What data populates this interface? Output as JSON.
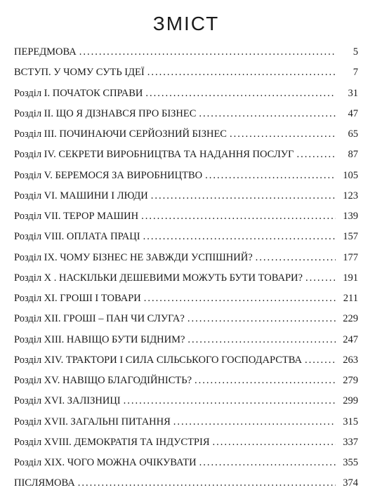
{
  "title": "ЗМІСТ",
  "colors": {
    "background": "#ffffff",
    "text": "#1a1a1a"
  },
  "typography": {
    "title_fontsize": 28,
    "entry_fontsize": 14.5,
    "title_letterspacing": 2
  },
  "entries": [
    {
      "label": "ПЕРЕДМОВА",
      "page": "5"
    },
    {
      "label": "ВСТУП. У ЧОМУ СУТЬ ІДЕЇ",
      "page": "7"
    },
    {
      "label": "Розділ І. ПОЧАТОК СПРАВИ",
      "page": "31"
    },
    {
      "label": "Розділ ІІ. ЩО Я ДІЗНАВСЯ ПРО БІЗНЕС",
      "page": "47"
    },
    {
      "label": "Розділ ІІІ. ПОЧИНАЮЧИ СЕРЙОЗНИЙ БІЗНЕС",
      "page": "65"
    },
    {
      "label": "Розділ IV. СЕКРЕТИ ВИРОБНИЦТВА ТА НАДАННЯ ПОСЛУГ",
      "page": "87"
    },
    {
      "label": "Розділ V. БЕРЕМОСЯ ЗА ВИРОБНИЦТВО",
      "page": "105"
    },
    {
      "label": "Розділ VI. МАШИНИ І ЛЮДИ",
      "page": "123"
    },
    {
      "label": "Розділ VII. ТЕРОР МАШИН",
      "page": "139"
    },
    {
      "label": "Розділ VIII. ОПЛАТА ПРАЦІ",
      "page": "157"
    },
    {
      "label": "Розділ IX. ЧОМУ БІЗНЕС НЕ ЗАВЖДИ УСПІШНИЙ?",
      "page": "177"
    },
    {
      "label": "Розділ X . НАСКІЛЬКИ ДЕШЕВИМИ МОЖУТЬ БУТИ ТОВАРИ?",
      "page": "191"
    },
    {
      "label": "Розділ XI. ГРОШІ І ТОВАРИ",
      "page": "211"
    },
    {
      "label": "Розділ XII. ГРОШІ – ПАН ЧИ СЛУГА?",
      "page": "229"
    },
    {
      "label": "Розділ XIII. НАВІЩО БУТИ БІДНИМ?",
      "page": "247"
    },
    {
      "label": "Розділ XIV. ТРАКТОРИ І СИЛА СІЛЬСЬКОГО ГОСПОДАРСТВА",
      "page": "263"
    },
    {
      "label": "Розділ XV. НАВІЩО БЛАГОДІЙНІСТЬ?",
      "page": "279"
    },
    {
      "label": "Розділ XVI. ЗАЛІЗНИЦІ",
      "page": "299"
    },
    {
      "label": "Розділ XVII. ЗАГАЛЬНІ ПИТАННЯ",
      "page": "315"
    },
    {
      "label": "Розділ XVIII. ДЕМОКРАТІЯ ТА ІНДУСТРІЯ",
      "page": "337"
    },
    {
      "label": "Розділ XIX. ЧОГО МОЖНА ОЧІКУВАТИ",
      "page": "355"
    },
    {
      "label": "ПІСЛЯМОВА",
      "page": "374"
    }
  ]
}
